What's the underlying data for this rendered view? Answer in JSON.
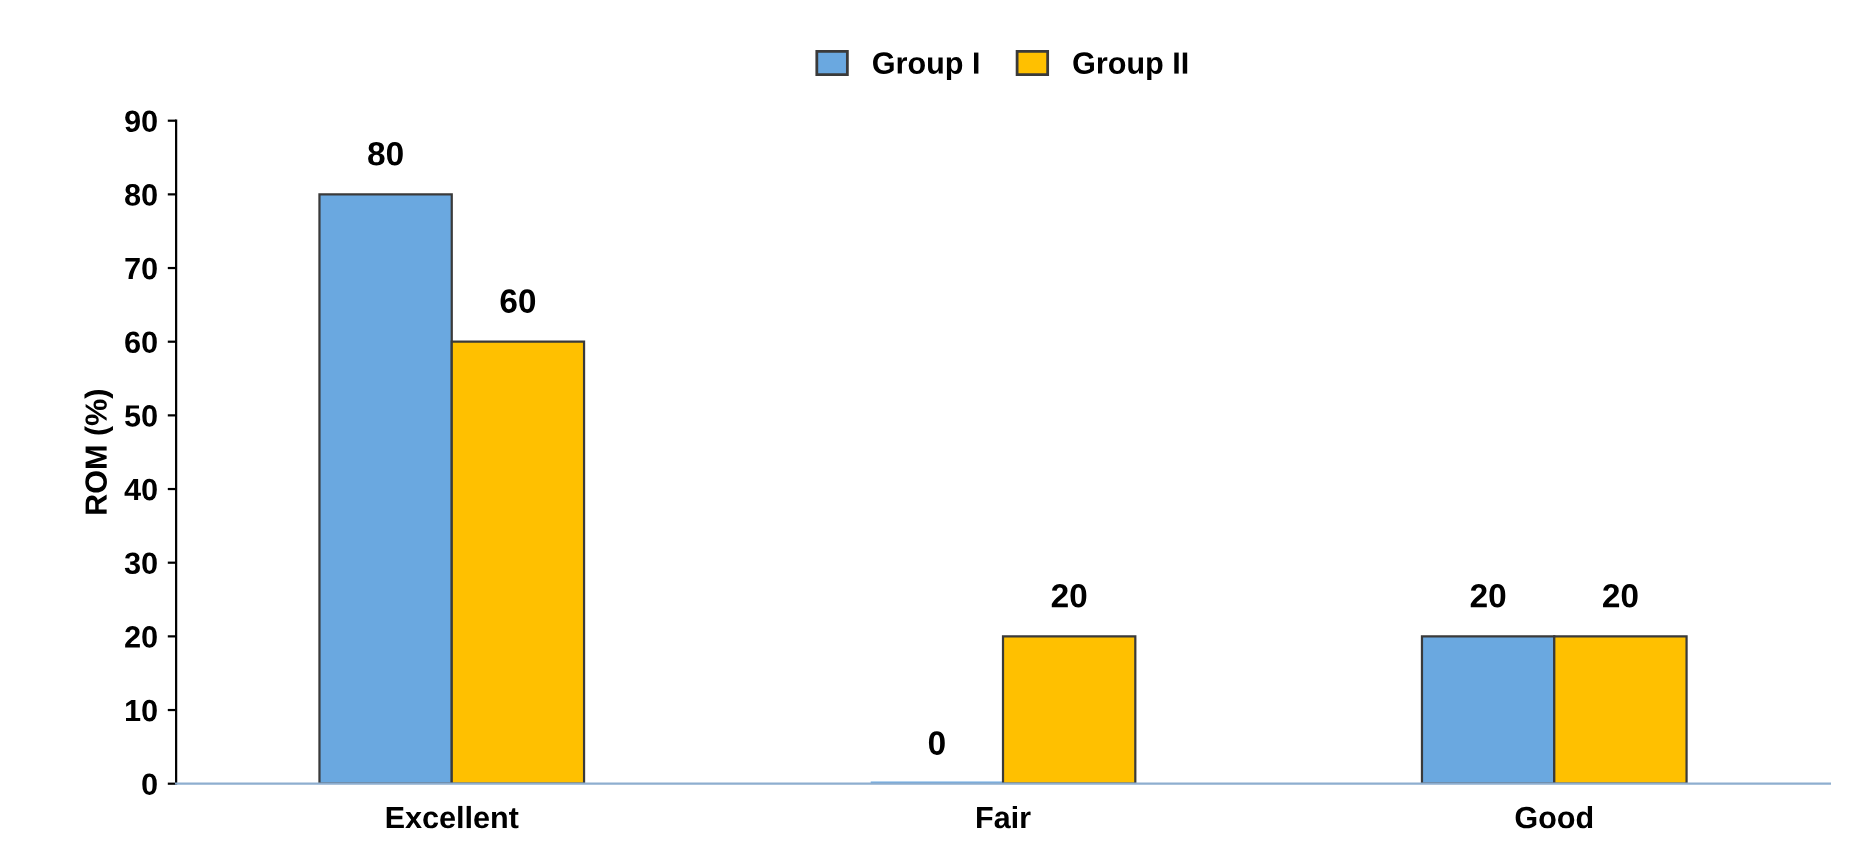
{
  "chart_data": {
    "type": "bar",
    "ylabel": "ROM (%)",
    "categories": [
      "Excellent",
      "Fair",
      "Good"
    ],
    "series": [
      {
        "name": "Group I",
        "color": "#6aa8e0",
        "values": [
          80,
          0,
          20
        ]
      },
      {
        "name": "Group II",
        "color": "#ffc000",
        "values": [
          60,
          20,
          20
        ]
      }
    ],
    "ylim": [
      0,
      90
    ],
    "yticks": [
      0,
      10,
      20,
      30,
      40,
      50,
      60,
      70,
      80,
      90
    ],
    "grid": false,
    "legend": "top",
    "data_labels": true
  }
}
